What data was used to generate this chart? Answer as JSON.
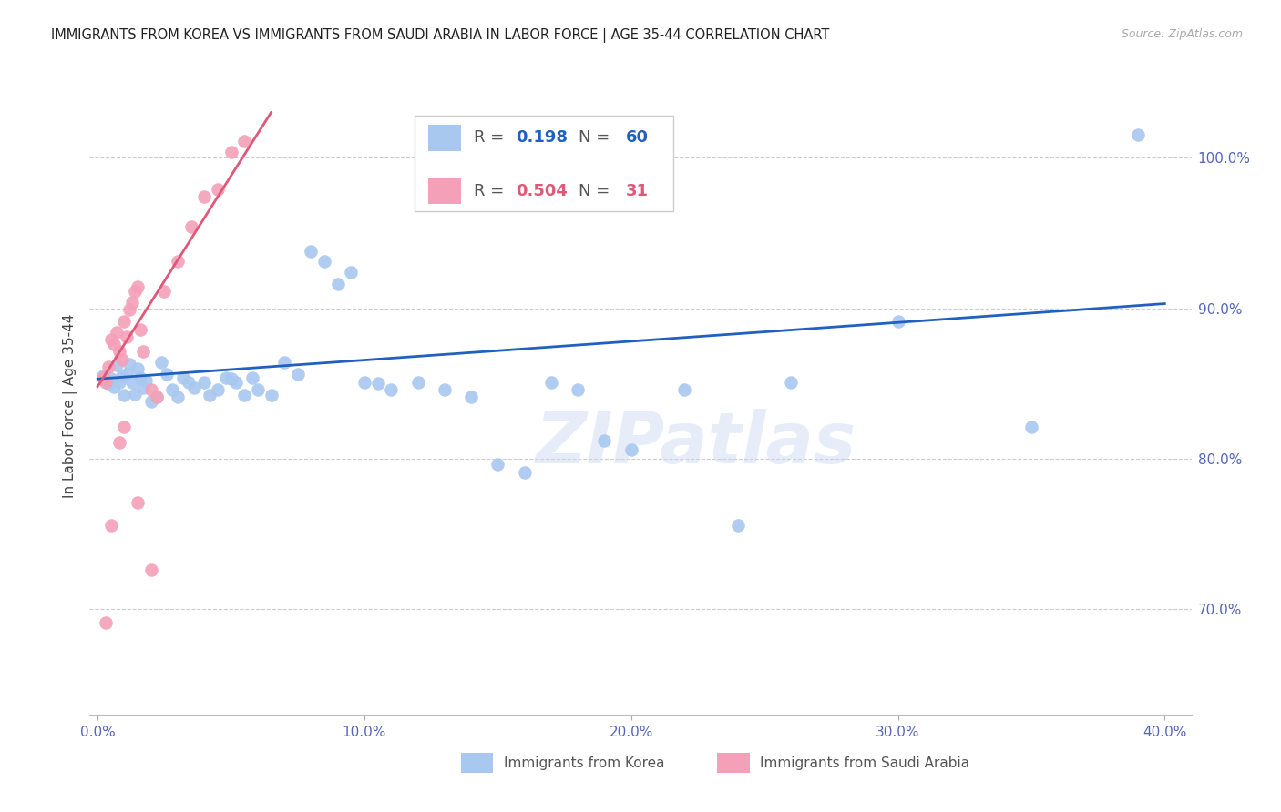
{
  "title": "IMMIGRANTS FROM KOREA VS IMMIGRANTS FROM SAUDI ARABIA IN LABOR FORCE | AGE 35-44 CORRELATION CHART",
  "source": "Source: ZipAtlas.com",
  "ylabel": "In Labor Force | Age 35-44",
  "xlabel_tick_vals": [
    0.0,
    10.0,
    20.0,
    30.0,
    40.0
  ],
  "xlabel_tick_labels": [
    "0.0%",
    "10.0%",
    "20.0%",
    "30.0%",
    "40.0%"
  ],
  "ylabel_tick_vals": [
    70.0,
    80.0,
    90.0,
    100.0
  ],
  "ylabel_tick_labels": [
    "70.0%",
    "80.0%",
    "90.0%",
    "100.0%"
  ],
  "xlim": [
    -0.3,
    41.0
  ],
  "ylim": [
    63.0,
    104.0
  ],
  "korea_color": "#a8c8f0",
  "saudi_color": "#f4a0b8",
  "korea_line_color": "#2060c0",
  "saudi_line_color": "#e05878",
  "korea_R": "0.198",
  "korea_N": "60",
  "saudi_R": "0.504",
  "saudi_N": "31",
  "legend_label_korea": "Immigrants from Korea",
  "legend_label_saudi": "Immigrants from Saudi Arabia",
  "watermark": "ZIPatlas",
  "korea_points": [
    [
      0.2,
      85.5
    ],
    [
      0.3,
      85.2
    ],
    [
      0.4,
      85.0
    ],
    [
      0.5,
      85.3
    ],
    [
      0.6,
      84.8
    ],
    [
      0.7,
      86.2
    ],
    [
      0.8,
      85.1
    ],
    [
      0.9,
      85.5
    ],
    [
      1.0,
      84.2
    ],
    [
      1.1,
      85.6
    ],
    [
      1.2,
      86.3
    ],
    [
      1.3,
      85.1
    ],
    [
      1.4,
      84.3
    ],
    [
      1.5,
      86.0
    ],
    [
      1.6,
      85.4
    ],
    [
      1.7,
      84.7
    ],
    [
      1.8,
      85.2
    ],
    [
      2.0,
      83.8
    ],
    [
      2.2,
      84.1
    ],
    [
      2.4,
      86.4
    ],
    [
      2.6,
      85.6
    ],
    [
      2.8,
      84.6
    ],
    [
      3.0,
      84.1
    ],
    [
      3.2,
      85.4
    ],
    [
      3.4,
      85.1
    ],
    [
      3.6,
      84.7
    ],
    [
      4.0,
      85.1
    ],
    [
      4.2,
      84.2
    ],
    [
      4.5,
      84.6
    ],
    [
      4.8,
      85.4
    ],
    [
      5.0,
      85.3
    ],
    [
      5.2,
      85.1
    ],
    [
      5.5,
      84.2
    ],
    [
      5.8,
      85.4
    ],
    [
      6.0,
      84.6
    ],
    [
      6.5,
      84.2
    ],
    [
      7.0,
      86.4
    ],
    [
      7.5,
      85.6
    ],
    [
      8.0,
      93.8
    ],
    [
      8.5,
      93.1
    ],
    [
      9.0,
      91.6
    ],
    [
      9.5,
      92.4
    ],
    [
      10.0,
      85.1
    ],
    [
      10.5,
      85.0
    ],
    [
      11.0,
      84.6
    ],
    [
      12.0,
      85.1
    ],
    [
      13.0,
      84.6
    ],
    [
      14.0,
      84.1
    ],
    [
      15.0,
      79.6
    ],
    [
      16.0,
      79.1
    ],
    [
      17.0,
      85.1
    ],
    [
      18.0,
      84.6
    ],
    [
      19.0,
      81.2
    ],
    [
      20.0,
      80.6
    ],
    [
      22.0,
      84.6
    ],
    [
      24.0,
      75.6
    ],
    [
      26.0,
      85.1
    ],
    [
      30.0,
      89.1
    ],
    [
      35.0,
      82.1
    ],
    [
      39.0,
      101.5
    ]
  ],
  "saudi_points": [
    [
      0.2,
      85.4
    ],
    [
      0.3,
      85.1
    ],
    [
      0.4,
      86.1
    ],
    [
      0.5,
      87.9
    ],
    [
      0.6,
      87.6
    ],
    [
      0.7,
      88.4
    ],
    [
      0.8,
      87.1
    ],
    [
      0.9,
      86.6
    ],
    [
      1.0,
      89.1
    ],
    [
      1.1,
      88.1
    ],
    [
      1.2,
      89.9
    ],
    [
      1.3,
      90.4
    ],
    [
      1.4,
      91.1
    ],
    [
      1.5,
      91.4
    ],
    [
      1.6,
      88.6
    ],
    [
      1.7,
      87.1
    ],
    [
      2.0,
      84.6
    ],
    [
      2.2,
      84.1
    ],
    [
      2.5,
      91.1
    ],
    [
      3.0,
      93.1
    ],
    [
      3.5,
      95.4
    ],
    [
      4.0,
      97.4
    ],
    [
      4.5,
      97.9
    ],
    [
      5.0,
      100.4
    ],
    [
      5.5,
      101.1
    ],
    [
      0.5,
      75.6
    ],
    [
      0.8,
      81.1
    ],
    [
      1.0,
      82.1
    ],
    [
      1.5,
      77.1
    ],
    [
      2.0,
      72.6
    ],
    [
      0.3,
      69.1
    ]
  ],
  "korea_trend_x": [
    0.0,
    40.0
  ],
  "korea_trend_y": [
    85.3,
    90.3
  ],
  "saudi_trend_x": [
    0.0,
    6.5
  ],
  "saudi_trend_y": [
    84.8,
    103.0
  ]
}
